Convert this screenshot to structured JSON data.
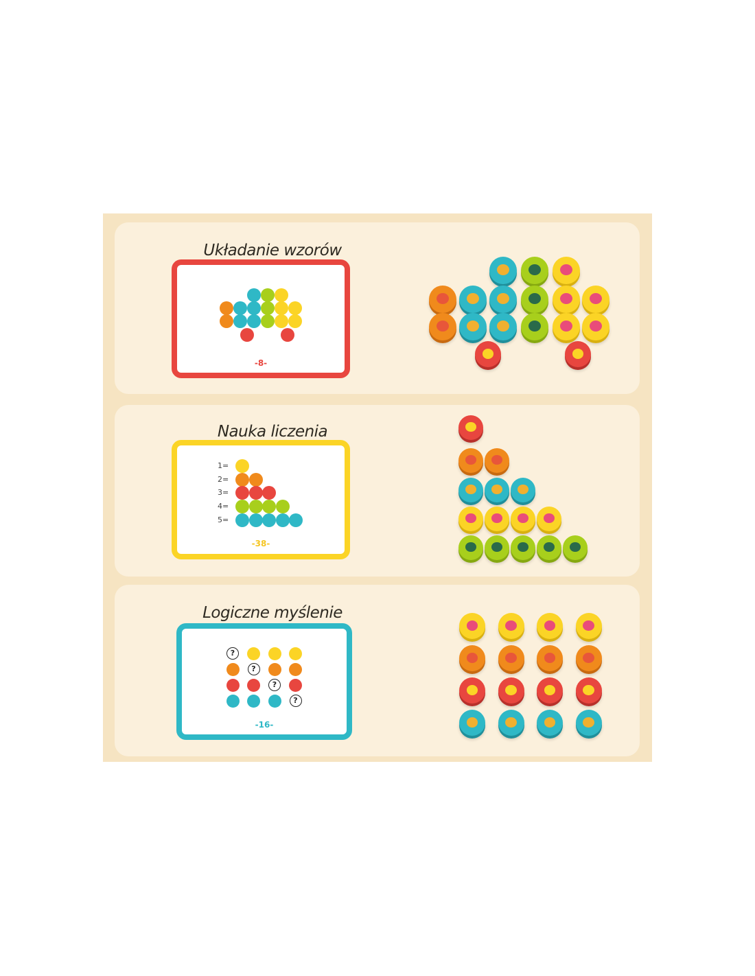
{
  "colors": {
    "background": "#f6e4c2",
    "panel": "#fbf0dc",
    "red": "#e8463f",
    "orange": "#f08a1c",
    "yellow": "#fbd426",
    "green": "#a8cf1c",
    "teal": "#2fb8c6"
  },
  "sections": [
    {
      "title": "Układanie wzorów",
      "card_page": "-8-",
      "card_border": "red",
      "tokens": "fish, dragonfly, flower, carrot, banana"
    },
    {
      "title": "Nauka liczenia",
      "card_page": "-38-",
      "card_border": "yellow",
      "count_labels": [
        "1=",
        "2=",
        "3=",
        "4=",
        "5="
      ]
    },
    {
      "title": "Logiczne myślenie",
      "card_page": "-16-",
      "card_border": "teal",
      "question_mark": "?"
    }
  ],
  "token_icons": {
    "teal": "fish-icon",
    "green": "dragonfly-icon",
    "yellow": "flower-icon",
    "orange": "carrot-icon",
    "red": "banana-icon"
  }
}
